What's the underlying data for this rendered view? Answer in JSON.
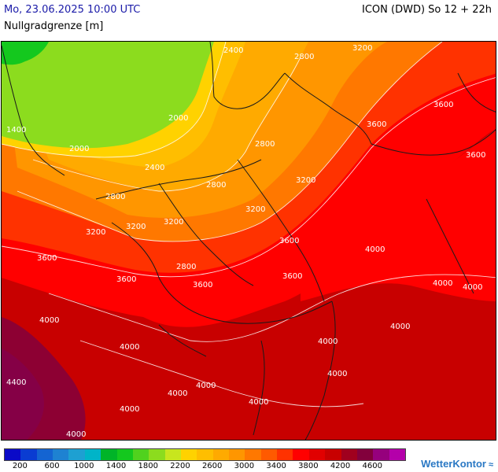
{
  "header": {
    "datetime": "Mo, 23.06.2025 10:00 UTC",
    "parameter": "Nullgradgrenze [m]",
    "model_run": "ICON (DWD) So 12 + 22h"
  },
  "legend": {
    "colors": [
      "#0a0ac8",
      "#0a3cd2",
      "#1464d2",
      "#1e82d2",
      "#1ea0d2",
      "#00b4c8",
      "#00b428",
      "#14c81e",
      "#50d21e",
      "#8cdc1e",
      "#c8e61e",
      "#ffd200",
      "#ffbe00",
      "#ffaa00",
      "#ff9600",
      "#ff7800",
      "#ff5a00",
      "#ff3200",
      "#ff0000",
      "#e10000",
      "#c80000",
      "#a0001e",
      "#82003c",
      "#96007d",
      "#b400aa"
    ],
    "labels": [
      "200",
      "600",
      "1000",
      "1400",
      "1800",
      "2200",
      "2600",
      "3000",
      "3400",
      "3800",
      "4200",
      "4600"
    ]
  },
  "contour_labels": [
    "2400",
    "2800",
    "3200",
    "2000",
    "3600",
    "3600",
    "1400",
    "2000",
    "2400",
    "2800",
    "3200",
    "2800",
    "3200",
    "2800",
    "3200",
    "3600",
    "3200",
    "3600",
    "3600",
    "4000",
    "4000",
    "3600",
    "3200",
    "2800",
    "3600",
    "4000",
    "3600",
    "4000",
    "4000",
    "4000",
    "4000",
    "4400",
    "4000",
    "4000",
    "4000",
    "4000",
    "4000",
    "4000"
  ],
  "brand": {
    "name": "WetterKontor",
    "icon": "wind-icon"
  }
}
